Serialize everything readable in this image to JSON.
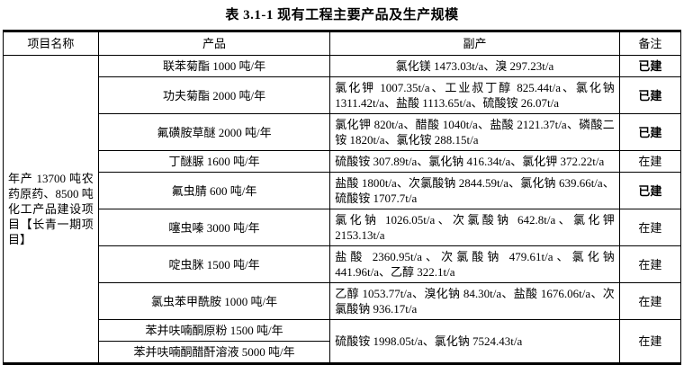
{
  "title": "表 3.1-1  现有工程主要产品及生产规模",
  "table": {
    "headers": [
      "项目名称",
      "产品",
      "副产",
      "备注"
    ],
    "project_name": "年产 13700 吨农药原药、8500 吨化工产品建设项目【长青一期项目】",
    "rows": [
      {
        "product": "联苯菊酯 1000 吨/年",
        "byproduct": "氯化镁 1473.03t/a、溴 297.23t/a",
        "remark": "已建",
        "remark_bold": true
      },
      {
        "product": "功夫菊酯 2000 吨/年",
        "byproduct": "氯化钾 1007.35t/a、工业叔丁醇 825.44t/a、氯化钠 1311.42t/a、盐酸 1113.65t/a、硫酸铵 26.07t/a",
        "remark": "已建",
        "remark_bold": true
      },
      {
        "product": "氟磺胺草醚 2000 吨/年",
        "byproduct": "氯化钾 820t/a、醋酸 1040t/a、盐酸 2121.37t/a、磷酸二铵 1820t/a、氯化铵 288.15t/a",
        "remark": "已建",
        "remark_bold": true
      },
      {
        "product": "丁醚脲 1600 吨/年",
        "byproduct": "硫酸铵 307.89t/a、氯化钠 416.34t/a、氯化钾 372.22t/a",
        "remark": "在建",
        "remark_bold": false
      },
      {
        "product": "氟虫腈 600 吨/年",
        "byproduct": "盐酸 1800t/a、次氯酸钠 2844.59t/a、氯化钠 639.66t/a、硫酸铵 1707.7t/a",
        "remark": "已建",
        "remark_bold": true
      },
      {
        "product": "噻虫嗪 3000 吨/年",
        "byproduct": "氯化钠 1026.05t/a、次氯酸钠 642.8t/a、氯化钾 2153.13t/a",
        "remark": "在建",
        "remark_bold": false
      },
      {
        "product": "啶虫脒 1500 吨/年",
        "byproduct": "盐酸 2360.95t/a、次氯酸钠 479.61t/a、氯化钠 441.96t/a、乙醇 322.1t/a",
        "remark": "在建",
        "remark_bold": false
      },
      {
        "product": "氯虫苯甲酰胺 1000 吨/年",
        "byproduct": "乙醇 1053.77t/a、溴化钠 84.30t/a、盐酸 1676.06t/a、次氯酸钠 936.17t/a",
        "remark": "在建",
        "remark_bold": false
      },
      {
        "product": "苯并呋喃酮原粉 1500 吨/年",
        "byproduct": "硫酸铵 1998.05t/a、氯化钠 7524.43t/a",
        "byproduct_rowspan": 2,
        "remark": "在建",
        "remark_bold": false,
        "remark_rowspan": 2
      },
      {
        "product": "苯并呋喃酮醋酐溶液 5000 吨/年"
      }
    ]
  }
}
